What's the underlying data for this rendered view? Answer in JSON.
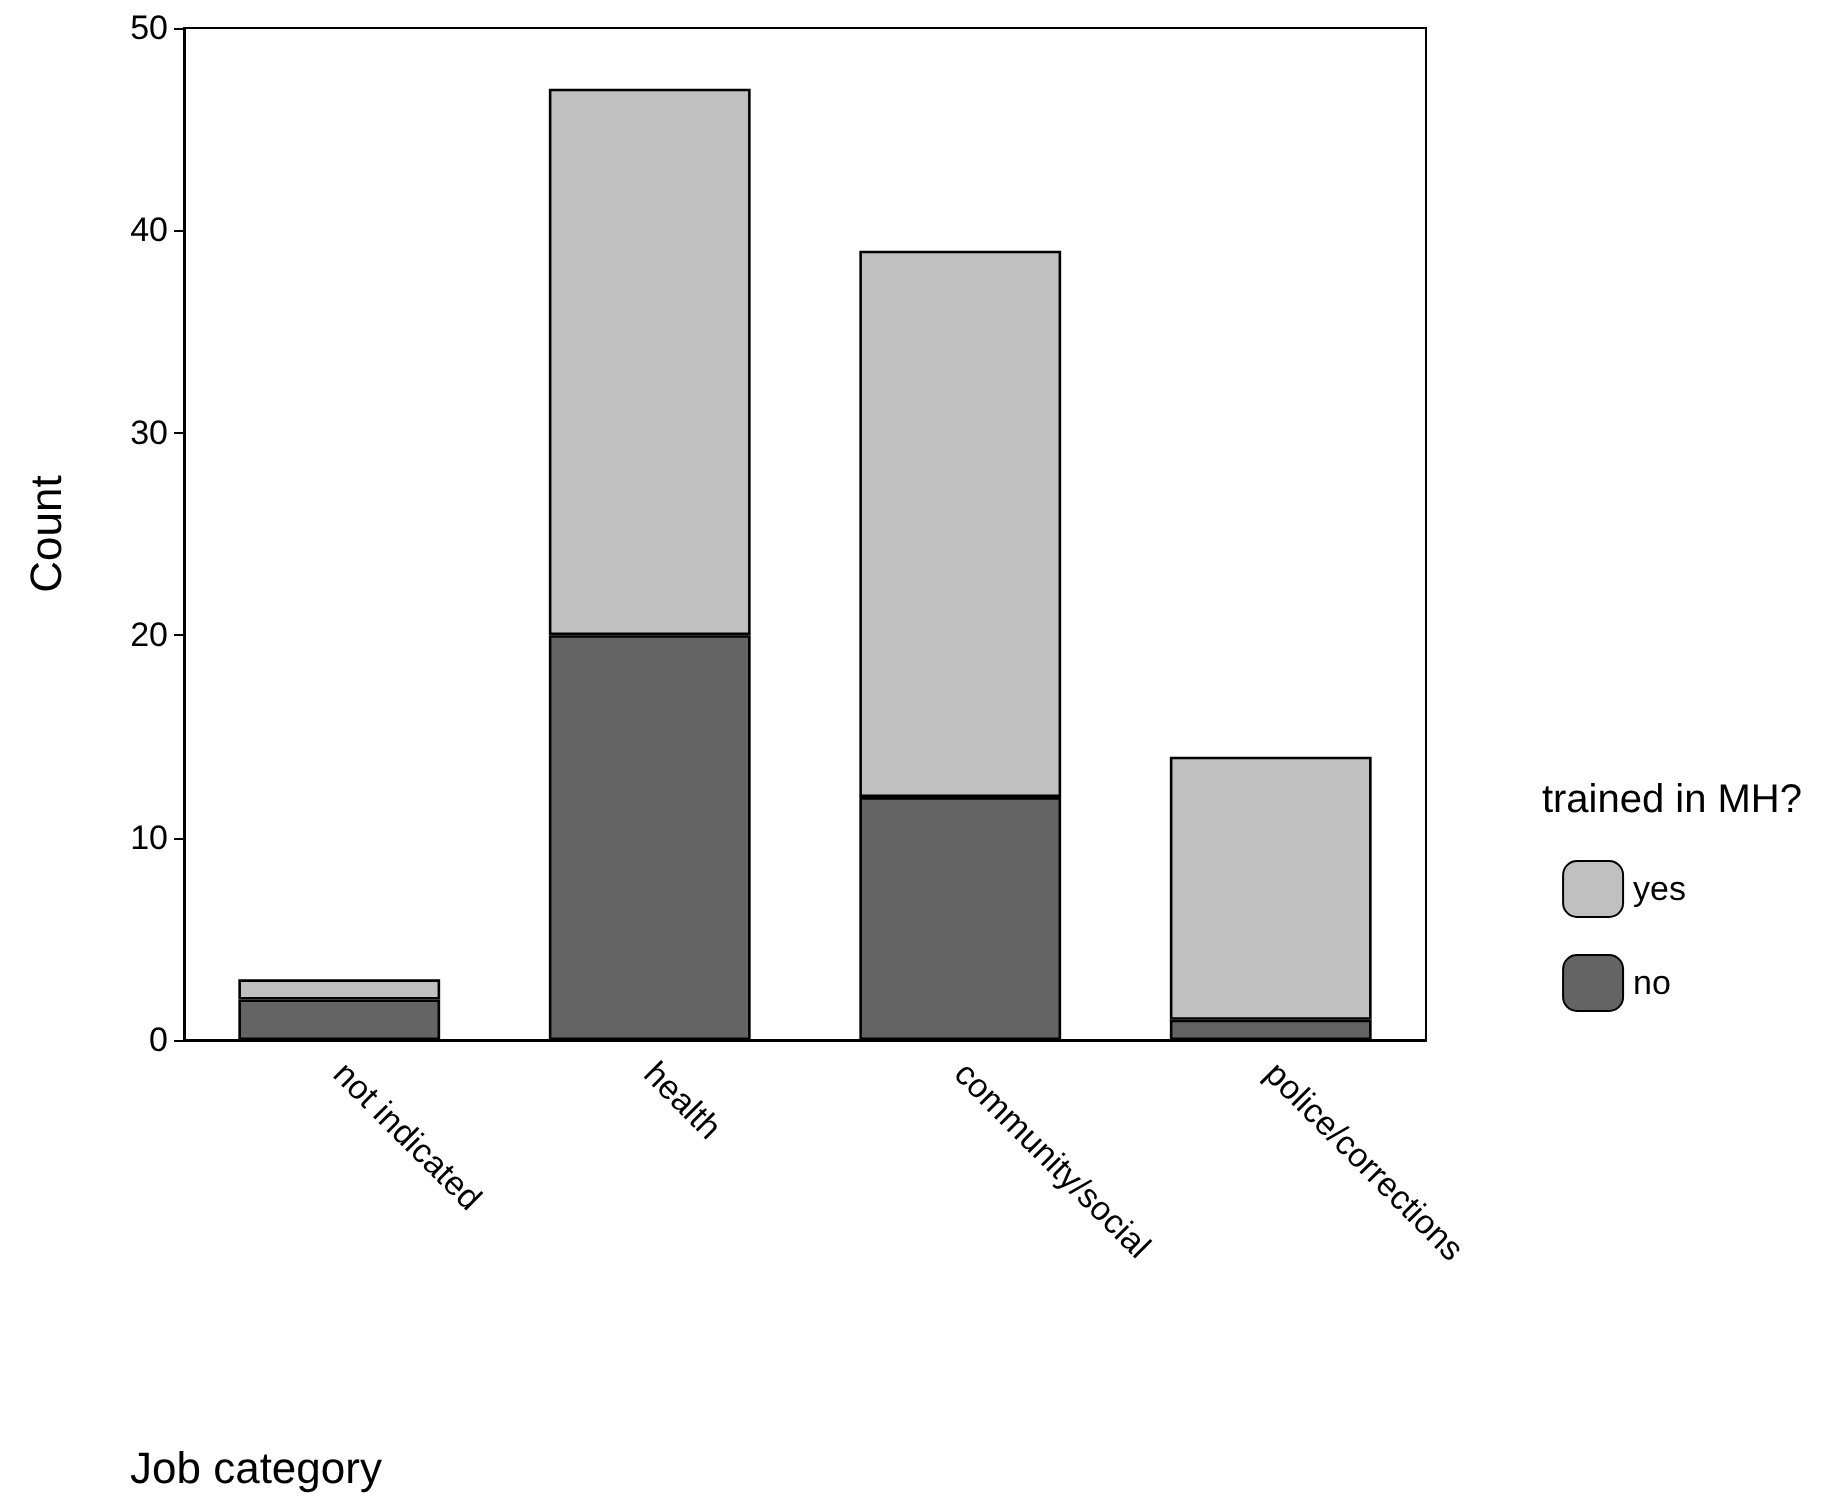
{
  "chart_data": {
    "type": "bar",
    "xlabel": "Job category",
    "ylabel": "Count",
    "legend_title": "trained in MH?",
    "categories": [
      "not indicated",
      "health",
      "community/social",
      "police/corrections"
    ],
    "series": [
      {
        "name": "no",
        "color": "#646464",
        "values": [
          2,
          20,
          12,
          1
        ]
      },
      {
        "name": "yes",
        "color": "#c0c0c0",
        "values": [
          1,
          27,
          27,
          13
        ]
      }
    ],
    "stacked": true,
    "ylim": [
      0,
      50
    ],
    "yticks": [
      0,
      10,
      20,
      30,
      40,
      50
    ],
    "grid": false,
    "legend": "right"
  }
}
